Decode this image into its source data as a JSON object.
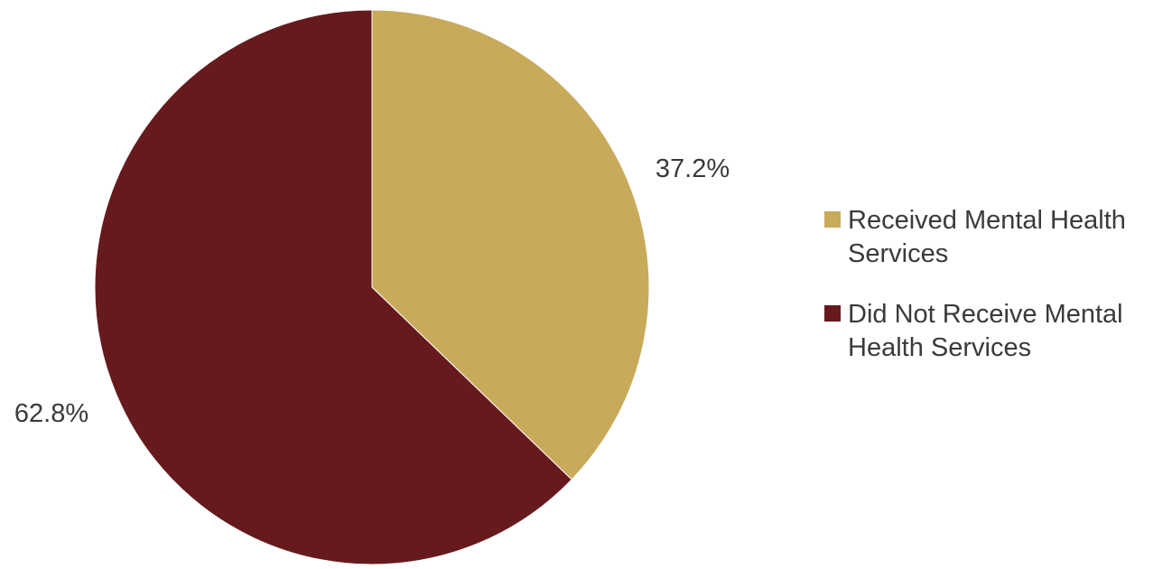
{
  "chart_data": {
    "type": "pie",
    "title": "",
    "slices": [
      {
        "label_lines": [
          "Received Mental Health",
          "Services"
        ],
        "value": 37.2,
        "value_label": "37.2%",
        "color": "#C8AA5B"
      },
      {
        "label_lines": [
          "Did Not Receive Mental",
          "Health Services"
        ],
        "value": 62.8,
        "value_label": "62.8%",
        "color": "#661A1D"
      }
    ],
    "legend_position": "right",
    "start_angle": "12 o'clock",
    "direction": "clockwise"
  }
}
